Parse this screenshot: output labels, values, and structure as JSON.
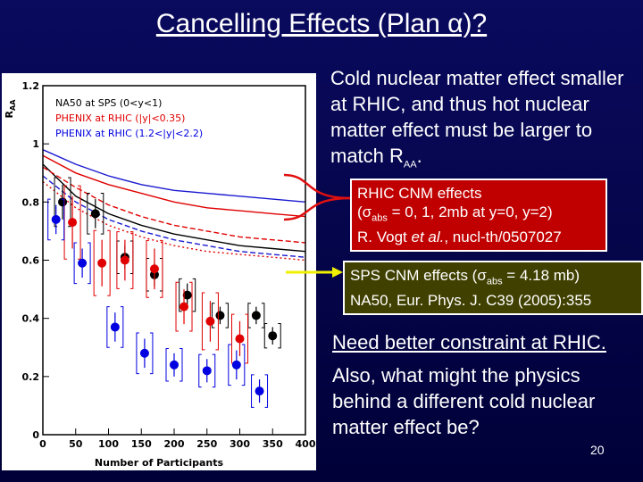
{
  "slide": {
    "title": "Cancelling Effects (Plan α)?",
    "para1_a": "Cold nuclear matter effect smaller at RHIC, and thus hot nuclear matter effect must be larger to match R",
    "para1_sub": "AA",
    "para1_end": ".",
    "box1": {
      "line1": "RHIC CNM effects",
      "line2_a": "(σ",
      "line2_sub": "abs",
      "line2_b": " = 0, 1, 2mb at y=0, y=2)",
      "line3_a": "R. Vogt ",
      "line3_em": "et al.",
      "line3_b": ", nucl-th/0507027"
    },
    "box2": {
      "line1_a": "SPS CNM effects (σ",
      "line1_sub": "abs",
      "line1_b": " = 4.18 mb)",
      "line2": "NA50, Eur. Phys. J. C39 (2005):355"
    },
    "para2": "Need better constraint at RHIC.",
    "para3": "Also, what might the physics behind a different cold nuclear matter effect be?",
    "page_number": "20",
    "colors": {
      "red_box": "#c00000",
      "yellow_box": "#404000",
      "arrow_red": "#e01010",
      "arrow_yellow": "#f0f000"
    }
  },
  "chart_data": {
    "type": "scatter",
    "xlabel": "Number of Participants",
    "ylabel": "R_AA",
    "xlim": [
      0,
      400
    ],
    "ylim": [
      0,
      1.2
    ],
    "xticks": [
      "0",
      "50",
      "100",
      "150",
      "200",
      "250",
      "300",
      "350",
      "400"
    ],
    "yticks": [
      "0",
      "0.2",
      "0.4",
      "0.6",
      "0.8",
      "1",
      "1.2"
    ],
    "legend": [
      "NA50 at SPS (0<y<1)",
      "PHENIX at RHIC (|y|<0.35)",
      "PHENIX at RHIC (1.2<|y|<2.2)"
    ],
    "legend_position": "top-left",
    "series": [
      {
        "name": "NA50 at SPS (0<y<1)",
        "color": "#000000",
        "x": [
          30,
          80,
          125,
          170,
          220,
          270,
          325,
          350
        ],
        "y": [
          0.8,
          0.76,
          0.61,
          0.55,
          0.48,
          0.41,
          0.41,
          0.34
        ],
        "err": [
          0.06,
          0.05,
          0.04,
          0.04,
          0.04,
          0.03,
          0.03,
          0.03
        ]
      },
      {
        "name": "PHENIX at RHIC (|y|<0.35)",
        "color": "#e00000",
        "x": [
          45,
          90,
          125,
          170,
          215,
          255,
          300
        ],
        "y": [
          0.73,
          0.59,
          0.6,
          0.57,
          0.44,
          0.39,
          0.33
        ],
        "err": [
          0.09,
          0.08,
          0.07,
          0.07,
          0.06,
          0.07,
          0.06
        ]
      },
      {
        "name": "PHENIX at RHIC (1.2<|y|<2.2)",
        "color": "#0000e0",
        "x": [
          20,
          60,
          110,
          155,
          200,
          250,
          295,
          330
        ],
        "y": [
          0.74,
          0.59,
          0.37,
          0.28,
          0.24,
          0.22,
          0.24,
          0.15
        ],
        "err": [
          0.05,
          0.05,
          0.05,
          0.05,
          0.04,
          0.04,
          0.05,
          0.04
        ]
      }
    ],
    "curves": [
      {
        "name": "",
        "color": "#000000",
        "style": "solid",
        "x": [
          0,
          50,
          100,
          150,
          200,
          250,
          300,
          350,
          400
        ],
        "y": [
          0.93,
          0.82,
          0.76,
          0.72,
          0.69,
          0.67,
          0.65,
          0.64,
          0.63
        ]
      },
      {
        "name": "",
        "color": "#1a1ad0",
        "style": "solid",
        "x": [
          0,
          50,
          100,
          150,
          200,
          250,
          300,
          350,
          400
        ],
        "y": [
          0.98,
          0.93,
          0.89,
          0.86,
          0.84,
          0.83,
          0.82,
          0.81,
          0.8
        ]
      },
      {
        "name": "",
        "color": "#e00000",
        "style": "solid",
        "x": [
          0,
          50,
          100,
          150,
          200,
          250,
          300,
          350,
          400
        ],
        "y": [
          0.96,
          0.9,
          0.86,
          0.83,
          0.8,
          0.78,
          0.77,
          0.76,
          0.75
        ]
      },
      {
        "name": "",
        "color": "#e00000",
        "style": "dashed",
        "x": [
          0,
          50,
          100,
          150,
          200,
          250,
          300,
          350,
          400
        ],
        "y": [
          0.92,
          0.85,
          0.79,
          0.75,
          0.72,
          0.7,
          0.68,
          0.67,
          0.66
        ]
      },
      {
        "name": "",
        "color": "#1a1ad0",
        "style": "dashed",
        "x": [
          0,
          50,
          100,
          150,
          200,
          250,
          300,
          350,
          400
        ],
        "y": [
          0.89,
          0.8,
          0.74,
          0.7,
          0.67,
          0.65,
          0.63,
          0.62,
          0.61
        ]
      },
      {
        "name": "",
        "color": "#e00000",
        "style": "dotted",
        "x": [
          0,
          50,
          100,
          150,
          200,
          250,
          300,
          350,
          400
        ],
        "y": [
          0.87,
          0.78,
          0.72,
          0.68,
          0.65,
          0.63,
          0.62,
          0.61,
          0.6
        ]
      }
    ]
  }
}
